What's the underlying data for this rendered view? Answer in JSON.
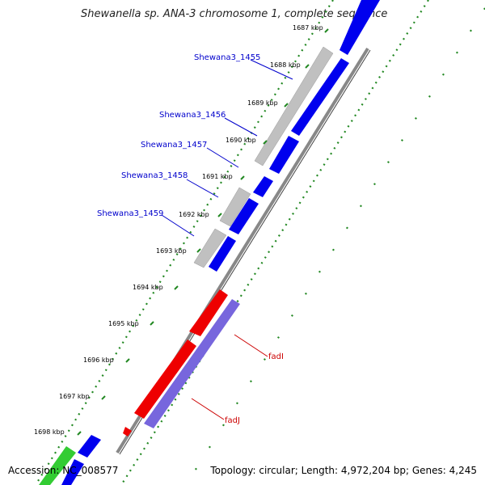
{
  "title": "Shewanella sp. ANA-3 chromosome 1, complete sequence",
  "footer": {
    "accession": "Accession: NC_008577",
    "summary": "Topology: circular; Length: 4,972,204 bp; Genes: 4,245"
  },
  "ticks": [
    "1687 kbp",
    "1688 kbp",
    "1689 kbp",
    "1690 kbp",
    "1691 kbp",
    "1692 kbp",
    "1693 kbp",
    "1694 kbp",
    "1695 kbp",
    "1696 kbp",
    "1697 kbp",
    "1698 kbp"
  ],
  "gene_labels": [
    {
      "name": "Shewana3_1455",
      "color": "#0000cc"
    },
    {
      "name": "Shewana3_1456",
      "color": "#0000cc"
    },
    {
      "name": "Shewana3_1457",
      "color": "#0000cc"
    },
    {
      "name": "Shewana3_1458",
      "color": "#0000cc"
    },
    {
      "name": "Shewana3_1459",
      "color": "#0000cc"
    },
    {
      "name": "fadI",
      "color": "#cc0000"
    },
    {
      "name": "fadJ",
      "color": "#cc0000"
    }
  ],
  "colors": {
    "forward_cds": "#0000ee",
    "reverse_pseudo": "#c0c0c0",
    "fad_red": "#ee0000",
    "fad_purple": "#7766dd",
    "green_feature": "#33cc33",
    "backbone": "#888888",
    "gc_dots": "#228822"
  }
}
